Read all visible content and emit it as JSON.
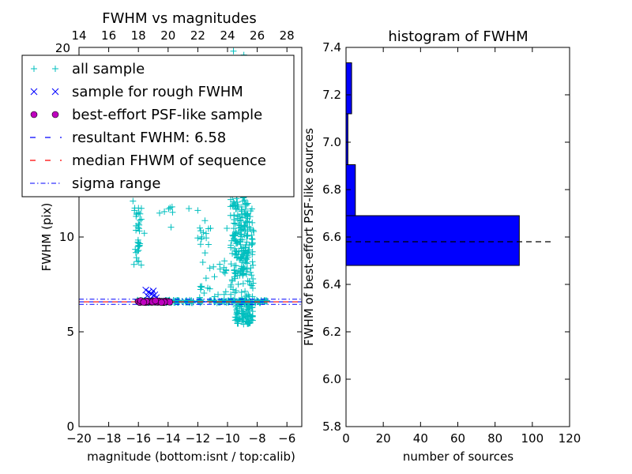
{
  "chart_data": [
    {
      "type": "scatter",
      "title": "FWHM vs magnitudes",
      "xlabel": "magnitude (bottom:isnt / top:calib)",
      "ylabel": "FWHM (pix)",
      "xlim": [
        -20,
        -5
      ],
      "ylim": [
        0,
        20
      ],
      "x_ticks": [
        -20,
        -18,
        -16,
        -14,
        -12,
        -10,
        -8,
        -6
      ],
      "x_tick_labels": [
        "−20",
        "−18",
        "−16",
        "−14",
        "−12",
        "−10",
        "−8",
        "−6"
      ],
      "y_ticks": [
        0,
        5,
        10
      ],
      "y_tick_labels": [
        "0",
        "5",
        "10"
      ],
      "top_axis": {
        "ticks": [
          14,
          16,
          18,
          20,
          22,
          24,
          26,
          28
        ],
        "tick_labels": [
          "14",
          "16",
          "18",
          "20",
          "22",
          "24",
          "26",
          "28"
        ],
        "offset": 34
      },
      "corner_label": "20",
      "legend": {
        "placement": "top-left",
        "entries": [
          {
            "label": "all sample",
            "marker": "+",
            "color": "#00bfbf"
          },
          {
            "label": "sample for rough FWHM",
            "marker": "x",
            "color": "#0000ff"
          },
          {
            "label": "best-effort PSF-like sample",
            "marker": "o",
            "color": "#bf00bf"
          },
          {
            "label": "resultant FWHM: 6.58",
            "marker": "dashed",
            "color": "#0000ff"
          },
          {
            "label": "median FHWM of sequence",
            "marker": "dashed",
            "color": "#ff0000"
          },
          {
            "label": "sigma range",
            "marker": "dashdot",
            "color": "#0000ff"
          }
        ]
      },
      "lines": {
        "resultant_fwhm": 6.58,
        "median_fwhm": 6.58,
        "sigma_range": [
          6.45,
          6.72
        ]
      },
      "series": [
        {
          "name": "all sample",
          "marker": "+",
          "color": "#00bfbf",
          "clusters": [
            {
              "x": [
                -16.1,
                -7.3
              ],
              "y": [
                6.6,
                6.6
              ],
              "n": 180,
              "sx": 0,
              "sy": 0.08
            },
            {
              "x": [
                -9.8,
                -8.2
              ],
              "y": [
                6.3,
                16.5
              ],
              "n": 260,
              "sx": 0,
              "sy": 0
            },
            {
              "x": [
                -9.6,
                -8.6
              ],
              "y": [
                8.0,
                12.0
              ],
              "n": 100,
              "sx": 0,
              "sy": 0
            },
            {
              "x": [
                -9.5,
                -8.3
              ],
              "y": [
                5.4,
                6.6
              ],
              "n": 90,
              "sx": 0,
              "sy": 0
            },
            {
              "x": [
                -16.3,
                -15.8
              ],
              "y": [
                8.5,
                11.5
              ],
              "n": 30,
              "sx": 0,
              "sy": 0
            },
            {
              "x": [
                -12.1,
                -10.0
              ],
              "y": [
                6.8,
                11.0
              ],
              "n": 40,
              "sx": 0,
              "sy": 0
            },
            {
              "x": [
                -14.8,
                -13.5
              ],
              "y": [
                10.5,
                11.6
              ],
              "n": 6,
              "sx": 0,
              "sy": 0
            },
            {
              "x": [
                -16.5,
                -15.7
              ],
              "y": [
                11.2,
                11.9
              ],
              "n": 6,
              "sx": 0,
              "sy": 0
            }
          ],
          "points": [
            [
              -9.6,
              19.8
            ],
            [
              -8.9,
              19.6
            ],
            [
              -9.3,
              18.2
            ],
            [
              -8.6,
              17.4
            ],
            [
              -9.2,
              16.8
            ],
            [
              -13.7,
              11.3
            ],
            [
              -12.6,
              11.5
            ],
            [
              -12.0,
              11.4
            ],
            [
              -16.0,
              10.7
            ],
            [
              -15.6,
              10.2
            ]
          ]
        },
        {
          "name": "sample for rough FWHM",
          "marker": "x",
          "color": "#0000ff",
          "points": [
            [
              -15.5,
              7.2
            ],
            [
              -15.3,
              7.1
            ],
            [
              -15.1,
              7.0
            ],
            [
              -15.0,
              7.15
            ],
            [
              -14.9,
              6.95
            ],
            [
              -15.6,
              6.6
            ],
            [
              -15.2,
              6.75
            ],
            [
              -14.8,
              6.8
            ],
            [
              -15.4,
              6.9
            ]
          ]
        },
        {
          "name": "best-effort PSF-like sample",
          "marker": "o",
          "color": "#bf00bf",
          "points": [
            [
              -16.0,
              6.6
            ],
            [
              -15.9,
              6.55
            ],
            [
              -15.8,
              6.62
            ],
            [
              -15.7,
              6.58
            ],
            [
              -15.6,
              6.6
            ],
            [
              -15.5,
              6.55
            ],
            [
              -15.4,
              6.62
            ],
            [
              -15.3,
              6.57
            ],
            [
              -15.2,
              6.6
            ],
            [
              -15.1,
              6.56
            ],
            [
              -15.0,
              6.63
            ],
            [
              -14.9,
              6.57
            ],
            [
              -14.8,
              6.6
            ],
            [
              -14.7,
              6.56
            ],
            [
              -14.6,
              6.62
            ],
            [
              -14.5,
              6.58
            ],
            [
              -14.4,
              6.6
            ],
            [
              -14.3,
              6.55
            ],
            [
              -14.2,
              6.62
            ],
            [
              -14.1,
              6.58
            ],
            [
              -14.0,
              6.6
            ],
            [
              -13.9,
              6.57
            ],
            [
              -15.85,
              6.64
            ],
            [
              -15.45,
              6.6
            ],
            [
              -15.05,
              6.58
            ],
            [
              -14.65,
              6.61
            ],
            [
              -14.25,
              6.57
            ],
            [
              -15.65,
              6.56
            ],
            [
              -14.85,
              6.63
            ],
            [
              -14.45,
              6.55
            ]
          ]
        }
      ]
    },
    {
      "type": "bar",
      "orientation": "horizontal",
      "title": "histogram of FWHM",
      "xlabel": "number of sources",
      "ylabel": "FWHM of best-effort PSF-like sources",
      "xlim": [
        0,
        120
      ],
      "ylim": [
        5.8,
        7.4
      ],
      "x_ticks": [
        0,
        20,
        40,
        60,
        80,
        100,
        120
      ],
      "x_tick_labels": [
        "0",
        "20",
        "40",
        "60",
        "80",
        "100",
        "120"
      ],
      "y_ticks": [
        5.8,
        6.0,
        6.2,
        6.4,
        6.6,
        6.8,
        7.0,
        7.2,
        7.4
      ],
      "y_tick_labels": [
        "5.8",
        "6.0",
        "6.2",
        "6.4",
        "6.6",
        "6.8",
        "7.0",
        "7.2",
        "7.4"
      ],
      "bar_color": "#0000ff",
      "bins": [
        {
          "from": 6.48,
          "to": 6.69,
          "count": 93
        },
        {
          "from": 6.69,
          "to": 6.905,
          "count": 5
        },
        {
          "from": 6.905,
          "to": 7.12,
          "count": 1
        },
        {
          "from": 7.12,
          "to": 7.335,
          "count": 3
        }
      ],
      "reference_line": {
        "y": 6.58,
        "x_range": [
          0,
          110
        ],
        "style": "dashed",
        "color": "#000000"
      }
    }
  ]
}
